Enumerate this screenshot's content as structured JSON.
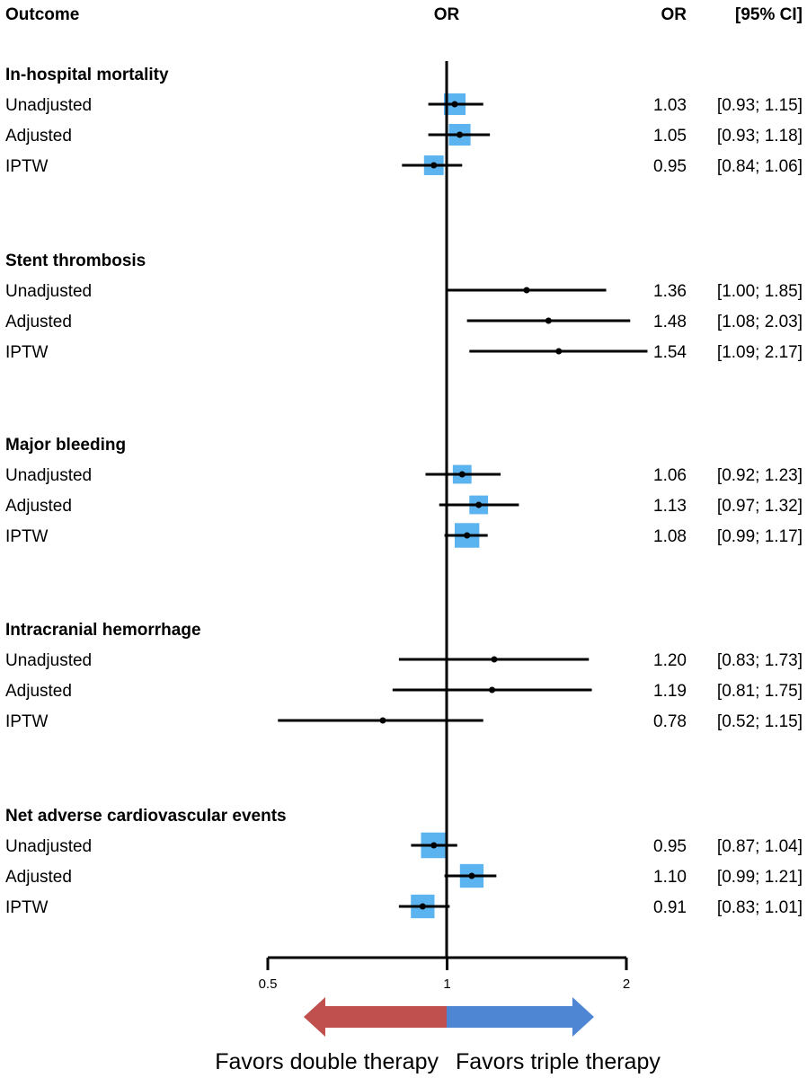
{
  "header": {
    "outcome": "Outcome",
    "or_plot": "OR",
    "or_col": "OR",
    "ci_col": "[95% CI]"
  },
  "chart_data": {
    "type": "forest",
    "x_scale": "log2",
    "xlim": [
      0.5,
      2
    ],
    "reference_value": 1,
    "x_ticks": [
      {
        "value": 0.5,
        "label": "0.5"
      },
      {
        "value": 1,
        "label": "1"
      },
      {
        "value": 2,
        "label": "2"
      }
    ],
    "groups": [
      {
        "title": "In-hospital mortality",
        "rows": [
          {
            "label": "Unadjusted",
            "or": 1.03,
            "lo": 0.93,
            "hi": 1.15,
            "or_text": "1.03",
            "ci_text": "[0.93; 1.15]",
            "weight": 0.55
          },
          {
            "label": "Adjusted",
            "or": 1.05,
            "lo": 0.93,
            "hi": 1.18,
            "or_text": "1.05",
            "ci_text": "[0.93; 1.18]",
            "weight": 0.55
          },
          {
            "label": "IPTW",
            "or": 0.95,
            "lo": 0.84,
            "hi": 1.06,
            "or_text": "0.95",
            "ci_text": "[0.84; 1.06]",
            "weight": 0.45
          }
        ]
      },
      {
        "title": "Stent thrombosis",
        "rows": [
          {
            "label": "Unadjusted",
            "or": 1.36,
            "lo": 1.0,
            "hi": 1.85,
            "or_text": "1.36",
            "ci_text": "[1.00; 1.85]",
            "weight": 0
          },
          {
            "label": "Adjusted",
            "or": 1.48,
            "lo": 1.08,
            "hi": 2.03,
            "or_text": "1.48",
            "ci_text": "[1.08; 2.03]",
            "weight": 0
          },
          {
            "label": "IPTW",
            "or": 1.54,
            "lo": 1.09,
            "hi": 2.17,
            "or_text": "1.54",
            "ci_text": "[1.09; 2.17]",
            "weight": 0
          }
        ]
      },
      {
        "title": "Major bleeding",
        "rows": [
          {
            "label": "Unadjusted",
            "or": 1.06,
            "lo": 0.92,
            "hi": 1.23,
            "or_text": "1.06",
            "ci_text": "[0.92; 1.23]",
            "weight": 0.4
          },
          {
            "label": "Adjusted",
            "or": 1.13,
            "lo": 0.97,
            "hi": 1.32,
            "or_text": "1.13",
            "ci_text": "[0.97; 1.32]",
            "weight": 0.4
          },
          {
            "label": "IPTW",
            "or": 1.08,
            "lo": 0.99,
            "hi": 1.17,
            "or_text": "1.08",
            "ci_text": "[0.99; 1.17]",
            "weight": 0.7
          }
        ]
      },
      {
        "title": "Intracranial hemorrhage",
        "rows": [
          {
            "label": "Unadjusted",
            "or": 1.2,
            "lo": 0.83,
            "hi": 1.73,
            "or_text": "1.20",
            "ci_text": "[0.83; 1.73]",
            "weight": 0
          },
          {
            "label": "Adjusted",
            "or": 1.19,
            "lo": 0.81,
            "hi": 1.75,
            "or_text": "1.19",
            "ci_text": "[0.81; 1.75]",
            "weight": 0
          },
          {
            "label": "IPTW",
            "or": 0.78,
            "lo": 0.52,
            "hi": 1.15,
            "or_text": "0.78",
            "ci_text": "[0.52; 1.15]",
            "weight": 0
          }
        ]
      },
      {
        "title": "Net adverse cardiovascular events",
        "rows": [
          {
            "label": "Unadjusted",
            "or": 0.95,
            "lo": 0.87,
            "hi": 1.04,
            "or_text": "0.95",
            "ci_text": "[0.87; 1.04]",
            "weight": 0.75
          },
          {
            "label": "Adjusted",
            "or": 1.1,
            "lo": 0.99,
            "hi": 1.21,
            "or_text": "1.10",
            "ci_text": "[0.99; 1.21]",
            "weight": 0.65
          },
          {
            "label": "IPTW",
            "or": 0.91,
            "lo": 0.83,
            "hi": 1.01,
            "or_text": "0.91",
            "ci_text": "[0.83; 1.01]",
            "weight": 0.65
          }
        ]
      }
    ],
    "direction": {
      "left_label": "Favors double therapy",
      "right_label": "Favors triple therapy"
    },
    "colors": {
      "box": "#5bb4f0",
      "line": "#000000",
      "arrow_left": "#c0504d",
      "arrow_right": "#4f86d4"
    }
  }
}
